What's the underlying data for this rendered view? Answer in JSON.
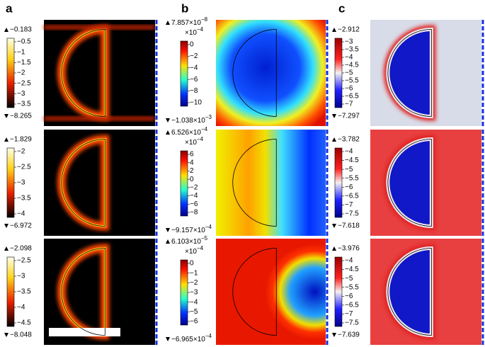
{
  "panels": [
    {
      "label": "a",
      "rows": [
        {
          "max": "−0.183",
          "min": "−8.265",
          "ticks": [
            "−0.5",
            "−1",
            "−1.5",
            "−2",
            "−2.5",
            "−3",
            "−3.5"
          ]
        },
        {
          "max": "−1.829",
          "min": "−6.972",
          "ticks": [
            "−2",
            "−2.5",
            "−3",
            "−3.5",
            "−4"
          ]
        },
        {
          "max": "−2.098",
          "min": "−8.048",
          "ticks": [
            "−2.5",
            "−3",
            "−3.5",
            "−4",
            "−4.5"
          ]
        }
      ]
    },
    {
      "label": "b",
      "rows": [
        {
          "max": {
            "mantissa": "7.857×10",
            "exponent": "−8"
          },
          "multiplier": {
            "mantissa": "×10",
            "exponent": "−4"
          },
          "min": {
            "mantissa": "−1.038×10",
            "exponent": "−3"
          },
          "ticks": [
            "0",
            "−2",
            "−4",
            "−6",
            "−8",
            "−10"
          ]
        },
        {
          "max": {
            "mantissa": "6.526×10",
            "exponent": "−4"
          },
          "multiplier": {
            "mantissa": "×10",
            "exponent": "−4"
          },
          "min": {
            "mantissa": "−9.157×10",
            "exponent": "−4"
          },
          "ticks": [
            "6",
            "4",
            "2",
            "0",
            "−2",
            "−4",
            "−6",
            "−8"
          ]
        },
        {
          "max": {
            "mantissa": "6.103×10",
            "exponent": "−5"
          },
          "multiplier": {
            "mantissa": "×10",
            "exponent": "−4"
          },
          "min": {
            "mantissa": "−6.965×10",
            "exponent": "−4"
          },
          "ticks": [
            "0",
            "−1",
            "−2",
            "−3",
            "−4",
            "−5",
            "−6"
          ]
        }
      ]
    },
    {
      "label": "c",
      "rows": [
        {
          "max": "−2.912",
          "min": "−7.297",
          "ticks": [
            "−3",
            "−3.5",
            "−4",
            "−4.5",
            "−5",
            "−5.5",
            "−6",
            "−6.5",
            "−7"
          ]
        },
        {
          "max": "−3.782",
          "min": "−7.618",
          "ticks": [
            "−4",
            "−4.5",
            "−5",
            "−5.5",
            "−6",
            "−6.5",
            "−7",
            "−7.5"
          ]
        },
        {
          "max": "−3.976",
          "min": "−7.639",
          "ticks": [
            "−4",
            "−4.5",
            "−5",
            "−5.5",
            "−6",
            "−6.5",
            "−7",
            "−7.5"
          ]
        }
      ]
    }
  ]
}
